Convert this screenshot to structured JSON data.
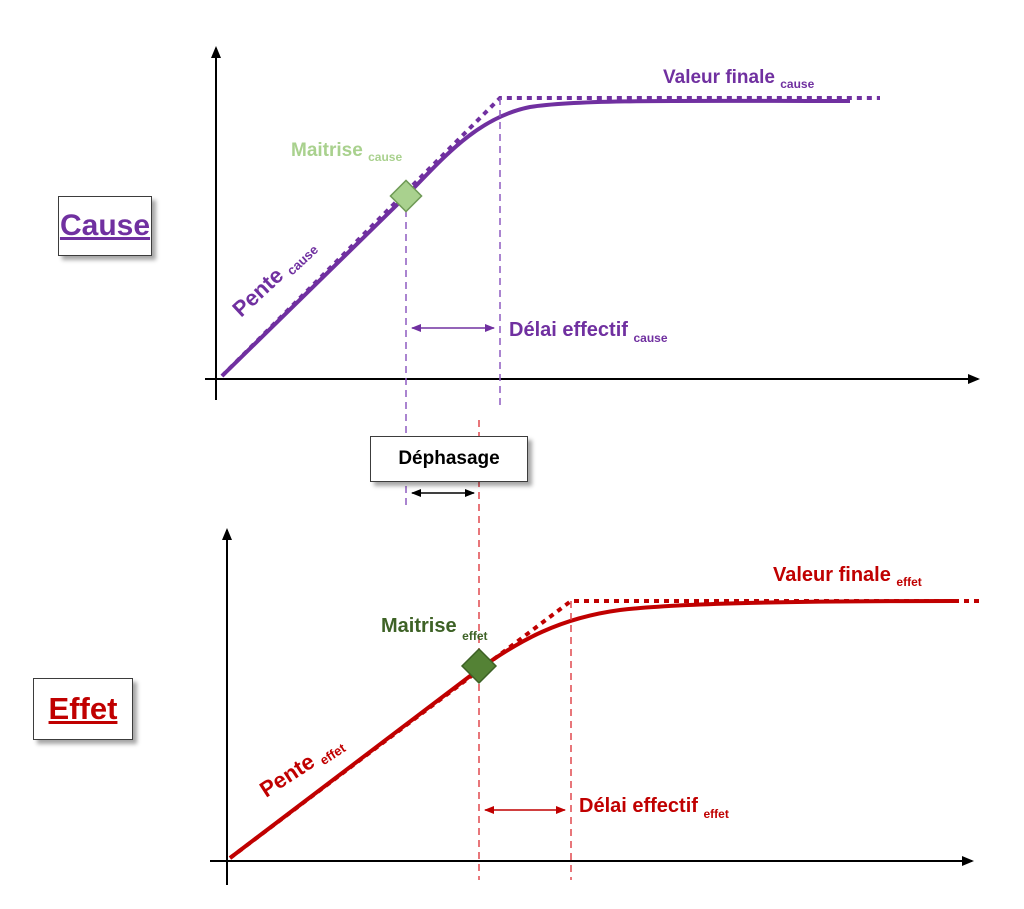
{
  "colors": {
    "cause": "#7030a0",
    "effet": "#c00000",
    "maitrise_cause": "#a9d18e",
    "maitrise_effet": "#548235",
    "axis": "#000000"
  },
  "labels": {
    "cause_box": "Cause",
    "effet_box": "Effet",
    "dephasage": "Déphasage",
    "valeur_finale": "Valeur finale",
    "maitrise": "Maitrise",
    "pente": "Pente",
    "delai_effectif": "Délai effectif",
    "sub_cause": "cause",
    "sub_effet": "effet"
  }
}
